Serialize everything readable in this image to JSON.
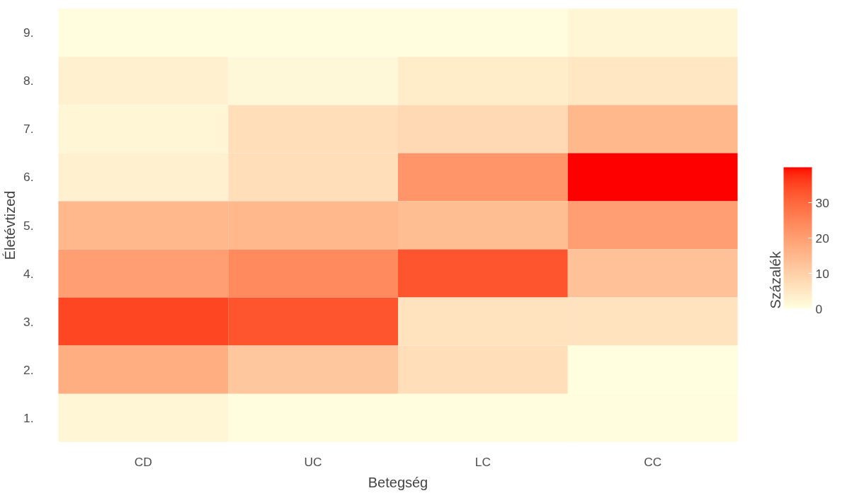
{
  "chart_data": {
    "type": "heatmap",
    "xlabel": "Betegség",
    "ylabel": "Életévtized",
    "clabel": "Százalék",
    "categories": [
      "CD",
      "UC",
      "LC",
      "CC"
    ],
    "y_categories": [
      "9.",
      "8.",
      "7.",
      "6.",
      "5.",
      "4.",
      "3.",
      "2.",
      "1."
    ],
    "cells": [
      [
        0.5,
        0.5,
        0.5,
        2
      ],
      [
        3,
        1.5,
        4,
        5
      ],
      [
        2,
        7,
        8,
        15
      ],
      [
        3,
        7,
        22,
        40
      ],
      [
        15,
        15,
        14,
        20
      ],
      [
        20,
        24,
        33,
        13
      ],
      [
        35,
        33,
        6,
        6
      ],
      [
        17,
        12,
        7,
        0
      ],
      [
        2,
        0.5,
        0.5,
        0.5
      ]
    ],
    "clim": [
      0,
      40
    ],
    "cticks": [
      0,
      10,
      20,
      30
    ]
  }
}
